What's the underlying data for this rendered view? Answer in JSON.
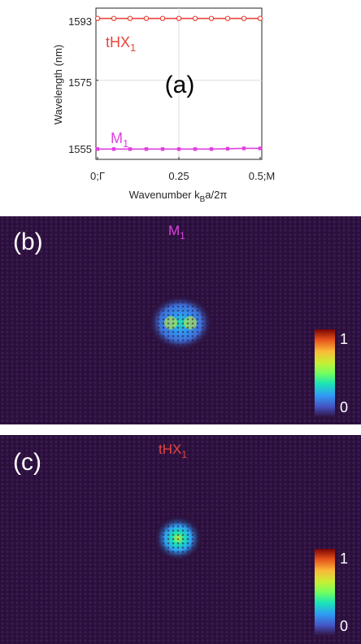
{
  "figure": {
    "panel_a": {
      "label": "(a)",
      "xlabel_main": "Wavenumber k",
      "xlabel_sub": "B",
      "xlabel_tail": "a/2π",
      "ylabel": "Wavelength (nm)",
      "xticks": [
        "0;Γ",
        "0.25",
        "0.5;M"
      ],
      "yticks": [
        "1555",
        "1575",
        "1593"
      ],
      "annotation_top": {
        "text": "tHX",
        "sub": "1",
        "color": "#e8453c"
      },
      "annotation_bottom": {
        "text": "M",
        "sub": "1",
        "color": "#e040e0"
      }
    },
    "panel_b": {
      "label": "(b)",
      "title": "M",
      "title_sub": "1",
      "title_color": "#e040e0",
      "colorbar_max": "1",
      "colorbar_min": "0"
    },
    "panel_c": {
      "label": "(c)",
      "title": "tHX",
      "title_sub": "1",
      "title_color": "#e8453c",
      "colorbar_max": "1",
      "colorbar_min": "0"
    }
  },
  "chart_data": {
    "type": "line",
    "xlabel": "Wavenumber k_B a/2π",
    "ylabel": "Wavelength (nm)",
    "xlim": [
      0,
      0.5
    ],
    "ylim": [
      1552,
      1596
    ],
    "grid": true,
    "x": [
      0,
      0.05,
      0.1,
      0.15,
      0.2,
      0.25,
      0.3,
      0.35,
      0.4,
      0.45,
      0.5
    ],
    "series": [
      {
        "name": "tHX1",
        "color": "#e8453c",
        "marker": "circle",
        "values": [
          1593,
          1593,
          1593,
          1593,
          1593,
          1593,
          1593,
          1593,
          1593,
          1593,
          1593
        ]
      },
      {
        "name": "M1",
        "color": "#e040e0",
        "marker": "square",
        "values": [
          1555,
          1555,
          1555,
          1555,
          1555,
          1555,
          1555,
          1555,
          1555.1,
          1555.2,
          1555.2
        ]
      }
    ]
  }
}
